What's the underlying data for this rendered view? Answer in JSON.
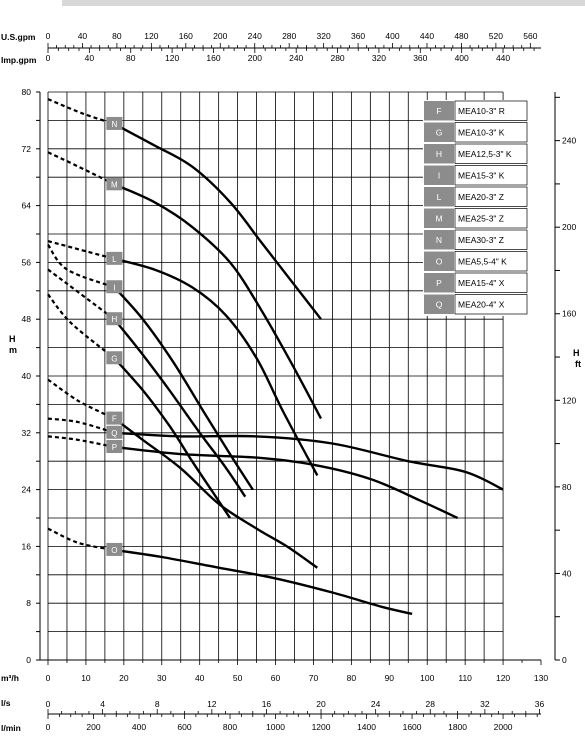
{
  "chart_data": {
    "type": "line",
    "title": "",
    "y_axis": {
      "label": "H\nm",
      "min": 0,
      "max": 80,
      "ticks": [
        0,
        8,
        16,
        24,
        32,
        40,
        48,
        56,
        64,
        72,
        80
      ]
    },
    "y_axis_right": {
      "label": "H\nft",
      "ticks": [
        0,
        40,
        80,
        120,
        160,
        200,
        240
      ]
    },
    "x_axes": [
      {
        "id": "usgpm",
        "label": "U.S.gpm",
        "ticks": [
          0,
          40,
          80,
          120,
          160,
          200,
          240,
          280,
          320,
          360,
          400,
          440,
          480,
          520,
          560
        ]
      },
      {
        "id": "impgpm",
        "label": "Imp.gpm",
        "ticks": [
          0,
          40,
          80,
          120,
          160,
          200,
          240,
          280,
          320,
          360,
          400,
          440
        ]
      },
      {
        "id": "m3h",
        "label": "m³/h",
        "min": 0,
        "max": 130,
        "ticks": [
          0,
          10,
          20,
          30,
          40,
          50,
          60,
          70,
          80,
          90,
          100,
          110,
          120,
          130
        ]
      },
      {
        "id": "ls",
        "label": "l/s",
        "ticks": [
          0,
          4,
          8,
          12,
          16,
          20,
          24,
          28,
          32,
          36
        ]
      },
      {
        "id": "lmin",
        "label": "l/min",
        "ticks": [
          0,
          200,
          400,
          600,
          800,
          1000,
          1200,
          1400,
          1600,
          1800,
          2000
        ]
      }
    ],
    "grid": true,
    "legend_position": "top-right",
    "series": [
      {
        "name": "MEA10-3\" R",
        "code": "F",
        "dashed": [
          [
            0,
            39.5
          ],
          [
            8,
            36.5
          ],
          [
            17.5,
            34
          ]
        ],
        "values": [
          [
            17.5,
            34
          ],
          [
            25,
            31
          ],
          [
            35,
            27
          ],
          [
            45,
            22
          ],
          [
            55,
            18.5
          ],
          [
            63,
            16
          ],
          [
            71,
            13
          ]
        ]
      },
      {
        "name": "MEA10-3\" K",
        "code": "G",
        "dashed": [
          [
            0,
            51.5
          ],
          [
            6,
            47.5
          ],
          [
            17.5,
            42.5
          ]
        ],
        "values": [
          [
            17.5,
            42.5
          ],
          [
            25,
            38
          ],
          [
            32,
            33
          ],
          [
            38,
            28
          ],
          [
            43,
            24
          ],
          [
            48,
            20
          ]
        ]
      },
      {
        "name": "MEA12,5-3\" K",
        "code": "H",
        "dashed": [
          [
            0,
            55
          ],
          [
            5,
            53
          ],
          [
            17.5,
            48
          ]
        ],
        "values": [
          [
            17.5,
            48
          ],
          [
            25,
            43
          ],
          [
            32,
            38
          ],
          [
            40,
            32
          ],
          [
            47,
            27
          ],
          [
            52,
            23
          ]
        ]
      },
      {
        "name": "MEA15-3\" K",
        "code": "I",
        "dashed": [
          [
            0,
            58.5
          ],
          [
            5,
            55
          ],
          [
            17.5,
            52.5
          ]
        ],
        "values": [
          [
            17.5,
            52.5
          ],
          [
            25,
            48
          ],
          [
            33,
            42
          ],
          [
            41,
            35
          ],
          [
            48,
            29
          ],
          [
            54,
            24
          ]
        ]
      },
      {
        "name": "MEA20-3\" Z",
        "code": "L",
        "dashed": [
          [
            0,
            59
          ],
          [
            7,
            58
          ],
          [
            17.5,
            56.5
          ]
        ],
        "values": [
          [
            17.5,
            56.5
          ],
          [
            28,
            55
          ],
          [
            38,
            52.5
          ],
          [
            47,
            48.5
          ],
          [
            55,
            42.5
          ],
          [
            62,
            35
          ],
          [
            71,
            26
          ]
        ]
      },
      {
        "name": "MEA25-3\" Z",
        "code": "M",
        "dashed": [
          [
            0,
            71.5
          ],
          [
            8,
            69.5
          ],
          [
            17.5,
            67
          ]
        ],
        "values": [
          [
            17.5,
            67
          ],
          [
            28,
            64.5
          ],
          [
            38,
            61
          ],
          [
            48,
            56
          ],
          [
            56,
            49.5
          ],
          [
            64,
            42
          ],
          [
            72,
            34
          ]
        ]
      },
      {
        "name": "MEA30-3\" Z",
        "code": "N",
        "dashed": [
          [
            0,
            79
          ],
          [
            9,
            77
          ],
          [
            17.5,
            75.5
          ]
        ],
        "values": [
          [
            17.5,
            75.5
          ],
          [
            28,
            72.5
          ],
          [
            38,
            69.5
          ],
          [
            48,
            64.5
          ],
          [
            56,
            59
          ],
          [
            64,
            53.5
          ],
          [
            72,
            48
          ]
        ]
      },
      {
        "name": "MEA5,5-4\" K",
        "code": "O",
        "dashed": [
          [
            0,
            18.5
          ],
          [
            8,
            16.5
          ],
          [
            17.5,
            15.5
          ]
        ],
        "values": [
          [
            17.5,
            15.5
          ],
          [
            30,
            14.5
          ],
          [
            45,
            13
          ],
          [
            60,
            11.5
          ],
          [
            75,
            9.5
          ],
          [
            88,
            7.5
          ],
          [
            96,
            6.5
          ]
        ]
      },
      {
        "name": "MEA15-4\" X",
        "code": "P",
        "dashed": [
          [
            0,
            31.5
          ],
          [
            8,
            31
          ],
          [
            17.5,
            30
          ]
        ],
        "values": [
          [
            17.5,
            30
          ],
          [
            35,
            29
          ],
          [
            55,
            28.5
          ],
          [
            70,
            27.5
          ],
          [
            85,
            25.5
          ],
          [
            98,
            22.5
          ],
          [
            108,
            20
          ]
        ]
      },
      {
        "name": "MEA20-4\" X",
        "code": "Q",
        "dashed": [
          [
            0,
            34
          ],
          [
            8,
            33.5
          ],
          [
            17.5,
            32
          ]
        ],
        "values": [
          [
            17.5,
            32
          ],
          [
            35,
            31.5
          ],
          [
            55,
            31.5
          ],
          [
            75,
            30.5
          ],
          [
            95,
            28
          ],
          [
            110,
            26.5
          ],
          [
            120,
            24
          ]
        ]
      }
    ]
  }
}
